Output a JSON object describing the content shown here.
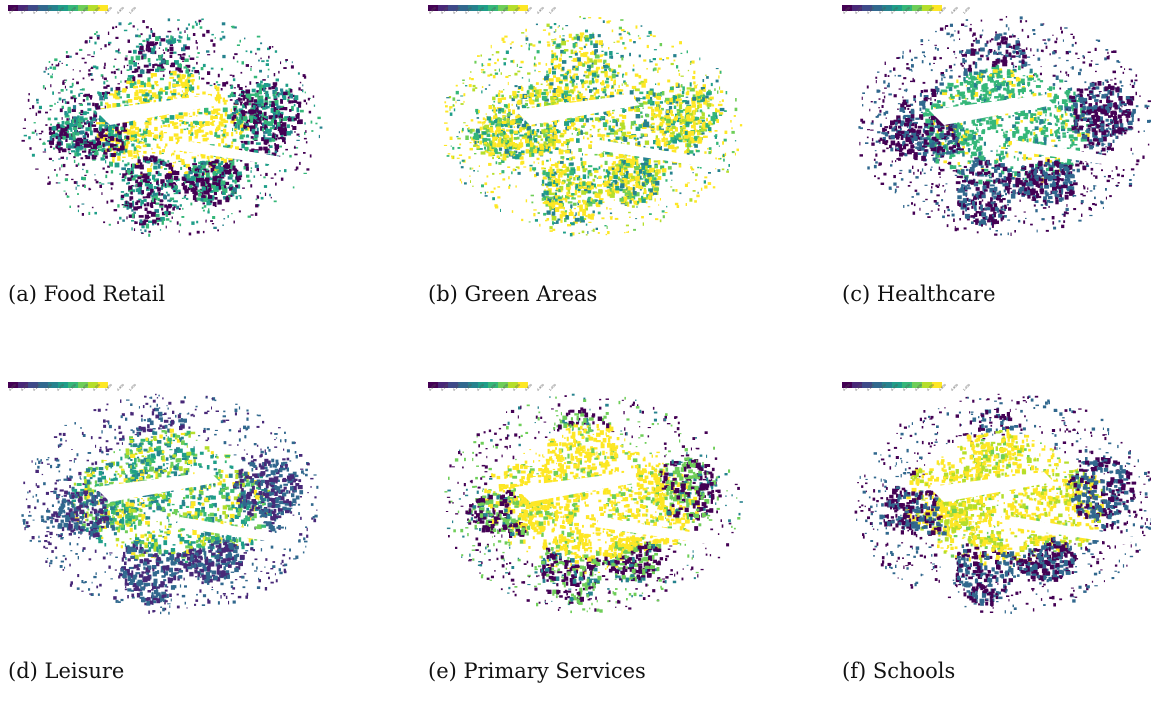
{
  "colormap": {
    "name": "viridis",
    "colors": [
      "#440154",
      "#482878",
      "#3e4a89",
      "#31688e",
      "#26828e",
      "#1f9e89",
      "#35b779",
      "#6ece58",
      "#b5de2b",
      "#fde725"
    ]
  },
  "legend_ticks": [
    "0.000",
    "0.100",
    "0.200",
    "0.300",
    "0.400",
    "0.500",
    "0.600",
    "0.700",
    "0.800",
    "0.900",
    "1.000"
  ],
  "panels": [
    {
      "caption": "(a) Food Retail",
      "palette_bias": "yellow-core",
      "seed": 11
    },
    {
      "caption": "(b) Green Areas",
      "palette_bias": "mixed-yellow",
      "seed": 23
    },
    {
      "caption": "(c) Healthcare",
      "palette_bias": "green-core",
      "seed": 37
    },
    {
      "caption": "(d) Leisure",
      "palette_bias": "green-teal",
      "seed": 41
    },
    {
      "caption": "(e) Primary Services",
      "palette_bias": "yellow-dominant",
      "seed": 53
    },
    {
      "caption": "(f) Schools",
      "palette_bias": "yellow-green",
      "seed": 67
    }
  ]
}
